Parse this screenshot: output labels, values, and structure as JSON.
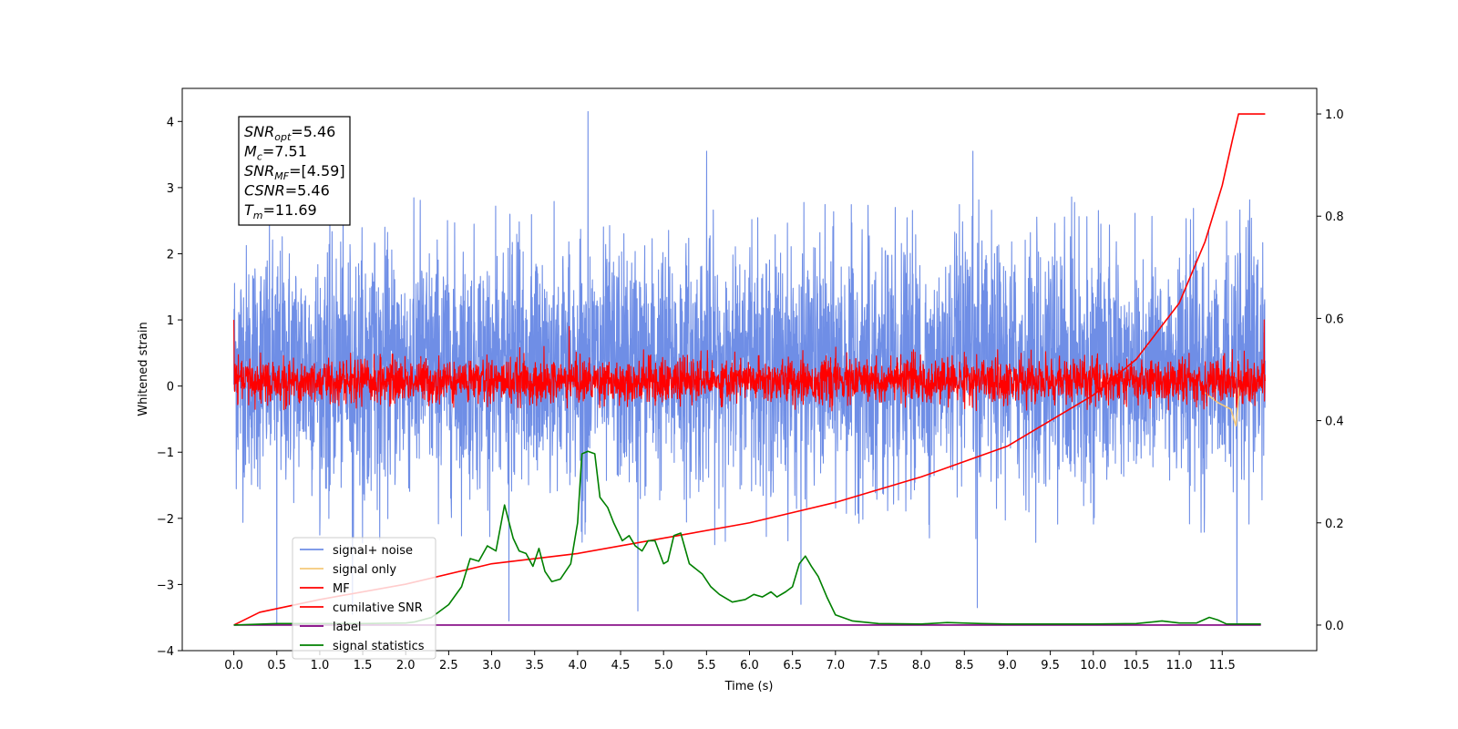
{
  "chart_data": {
    "type": "line",
    "xlabel": "Time (s)",
    "ylabel": "Whitened strain",
    "xlim": [
      -0.6,
      12.6
    ],
    "ylim": [
      -4.0,
      4.5
    ],
    "y2lim": [
      -0.05,
      1.05
    ],
    "x_ticks": [
      0.0,
      0.5,
      1.0,
      1.5,
      2.0,
      2.5,
      3.0,
      3.5,
      4.0,
      4.5,
      5.0,
      5.5,
      6.0,
      6.5,
      7.0,
      7.5,
      8.0,
      8.5,
      9.0,
      9.5,
      10.0,
      10.5,
      11.0,
      11.5
    ],
    "x_tick_labels": [
      "0.0",
      "0.5",
      "1.0",
      "1.5",
      "2.0",
      "2.5",
      "3.0",
      "3.5",
      "4.0",
      "4.5",
      "5.0",
      "5.5",
      "6.0",
      "6.5",
      "7.0",
      "7.5",
      "8.0",
      "8.5",
      "9.0",
      "9.5",
      "10.0",
      "10.5",
      "11.0",
      "11.5"
    ],
    "y_ticks": [
      -4,
      -3,
      -2,
      -1,
      0,
      1,
      2,
      3,
      4
    ],
    "y_tick_labels": [
      "−4",
      "−3",
      "−2",
      "−1",
      "0",
      "1",
      "2",
      "3",
      "4"
    ],
    "y2_ticks": [
      0.0,
      0.2,
      0.4,
      0.6,
      0.8,
      1.0
    ],
    "y2_tick_labels": [
      "0.0",
      "0.2",
      "0.4",
      "0.6",
      "0.8",
      "1.0"
    ],
    "grid": false,
    "legend_position": "lower-left",
    "series": [
      {
        "name": "signal+ noise",
        "color": "#6f8ee6",
        "axis": "left",
        "style": "dense noise band",
        "x_range": [
          0.0,
          12.0
        ],
        "typical_range": [
          -2.0,
          2.6
        ],
        "peaks": [
          [
            0.5,
            -3.6
          ],
          [
            1.38,
            -3.45
          ],
          [
            3.2,
            -3.55
          ],
          [
            4.12,
            4.15
          ],
          [
            4.7,
            -3.4
          ],
          [
            5.5,
            3.55
          ],
          [
            6.6,
            -3.3
          ],
          [
            8.6,
            3.55
          ],
          [
            8.65,
            -3.35
          ],
          [
            11.67,
            -3.6
          ]
        ]
      },
      {
        "name": "signal only",
        "color": "#f5c97a",
        "axis": "left",
        "style": "chirp",
        "points": [
          [
            11.3,
            -0.1
          ],
          [
            11.45,
            -0.25
          ],
          [
            11.6,
            -0.35
          ],
          [
            11.66,
            -0.6
          ],
          [
            11.69,
            -0.2
          ],
          [
            11.7,
            0.0
          ]
        ]
      },
      {
        "name": "MF",
        "color": "#ff0000",
        "axis": "left",
        "style": "dense noise band",
        "x_range": [
          0.0,
          12.0
        ],
        "typical_range": [
          -0.35,
          0.5
        ],
        "peaks": [
          [
            0.0,
            1.0
          ],
          [
            3.9,
            0.9
          ],
          [
            11.99,
            1.0
          ]
        ]
      },
      {
        "name": "cumilative SNR",
        "color": "#ff0000",
        "axis": "right",
        "points": [
          [
            0.0,
            0.0
          ],
          [
            0.3,
            0.025
          ],
          [
            1.0,
            0.05
          ],
          [
            2.0,
            0.08
          ],
          [
            3.0,
            0.12
          ],
          [
            4.0,
            0.14
          ],
          [
            5.0,
            0.17
          ],
          [
            6.0,
            0.2
          ],
          [
            7.0,
            0.24
          ],
          [
            8.0,
            0.29
          ],
          [
            9.0,
            0.35
          ],
          [
            10.0,
            0.45
          ],
          [
            10.5,
            0.52
          ],
          [
            11.0,
            0.63
          ],
          [
            11.3,
            0.75
          ],
          [
            11.5,
            0.86
          ],
          [
            11.62,
            0.95
          ],
          [
            11.69,
            1.0
          ],
          [
            12.0,
            1.0
          ]
        ]
      },
      {
        "name": "label",
        "color": "#800080",
        "axis": "right",
        "points": [
          [
            0.0,
            0.0
          ],
          [
            11.95,
            0.0
          ]
        ]
      },
      {
        "name": "signal statistics",
        "color": "#008000",
        "axis": "right",
        "points": [
          [
            0.0,
            0.0
          ],
          [
            0.5,
            0.003
          ],
          [
            1.0,
            0.003
          ],
          [
            1.5,
            0.003
          ],
          [
            2.0,
            0.004
          ],
          [
            2.1,
            0.006
          ],
          [
            2.3,
            0.015
          ],
          [
            2.5,
            0.04
          ],
          [
            2.65,
            0.075
          ],
          [
            2.75,
            0.13
          ],
          [
            2.85,
            0.125
          ],
          [
            2.95,
            0.155
          ],
          [
            3.05,
            0.145
          ],
          [
            3.15,
            0.235
          ],
          [
            3.25,
            0.17
          ],
          [
            3.32,
            0.145
          ],
          [
            3.4,
            0.14
          ],
          [
            3.48,
            0.115
          ],
          [
            3.55,
            0.15
          ],
          [
            3.62,
            0.105
          ],
          [
            3.7,
            0.085
          ],
          [
            3.8,
            0.09
          ],
          [
            3.92,
            0.12
          ],
          [
            4.0,
            0.2
          ],
          [
            4.05,
            0.335
          ],
          [
            4.12,
            0.34
          ],
          [
            4.2,
            0.335
          ],
          [
            4.26,
            0.25
          ],
          [
            4.35,
            0.23
          ],
          [
            4.42,
            0.2
          ],
          [
            4.52,
            0.165
          ],
          [
            4.6,
            0.175
          ],
          [
            4.67,
            0.155
          ],
          [
            4.75,
            0.145
          ],
          [
            4.82,
            0.165
          ],
          [
            4.9,
            0.165
          ],
          [
            5.0,
            0.12
          ],
          [
            5.05,
            0.125
          ],
          [
            5.12,
            0.175
          ],
          [
            5.2,
            0.18
          ],
          [
            5.3,
            0.12
          ],
          [
            5.45,
            0.1
          ],
          [
            5.55,
            0.075
          ],
          [
            5.65,
            0.06
          ],
          [
            5.8,
            0.045
          ],
          [
            5.95,
            0.05
          ],
          [
            6.05,
            0.06
          ],
          [
            6.15,
            0.055
          ],
          [
            6.25,
            0.065
          ],
          [
            6.32,
            0.055
          ],
          [
            6.42,
            0.065
          ],
          [
            6.5,
            0.075
          ],
          [
            6.58,
            0.12
          ],
          [
            6.65,
            0.135
          ],
          [
            6.72,
            0.115
          ],
          [
            6.8,
            0.095
          ],
          [
            6.9,
            0.055
          ],
          [
            7.0,
            0.02
          ],
          [
            7.2,
            0.008
          ],
          [
            7.5,
            0.003
          ],
          [
            8.0,
            0.002
          ],
          [
            8.3,
            0.005
          ],
          [
            8.7,
            0.003
          ],
          [
            9.0,
            0.002
          ],
          [
            10.0,
            0.002
          ],
          [
            10.5,
            0.003
          ],
          [
            10.8,
            0.008
          ],
          [
            11.0,
            0.004
          ],
          [
            11.2,
            0.004
          ],
          [
            11.35,
            0.015
          ],
          [
            11.45,
            0.01
          ],
          [
            11.55,
            0.002
          ],
          [
            11.95,
            0.002
          ]
        ]
      }
    ]
  },
  "info_box": [
    {
      "main": "SNR",
      "sub": "opt",
      "rest": "=5.46"
    },
    {
      "main": "M",
      "sub": "c",
      "rest": "=7.51"
    },
    {
      "main": "SNR",
      "sub": "MF",
      "rest": "=[4.59]"
    },
    {
      "main": "CSNR",
      "sub": "",
      "rest": "=5.46"
    },
    {
      "main": "T",
      "sub": "m",
      "rest": "=11.69"
    }
  ]
}
